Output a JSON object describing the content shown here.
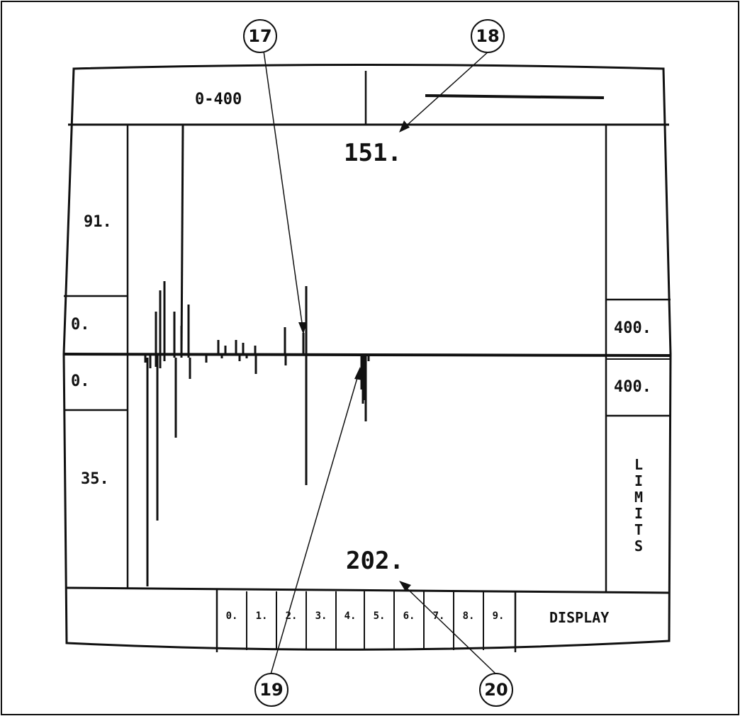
{
  "header": {
    "range_label": "0-400"
  },
  "plot": {
    "top_value": "151.",
    "bottom_value": "202."
  },
  "left_panel": {
    "upper_value": "91.",
    "upper_mid": "0.",
    "lower_mid": "0.",
    "lower_value": "35."
  },
  "right_panel": {
    "upper": "400.",
    "lower": "400.",
    "mode_label": [
      "L",
      "I",
      "M",
      "I",
      "T",
      "S"
    ]
  },
  "bottom_bar": {
    "keys": [
      "0.",
      "1.",
      "2.",
      "3.",
      "4.",
      "5.",
      "6.",
      "7.",
      "8.",
      "9."
    ],
    "display_label": "DISPLAY"
  },
  "callouts": [
    "17",
    "18",
    "19",
    "20"
  ]
}
